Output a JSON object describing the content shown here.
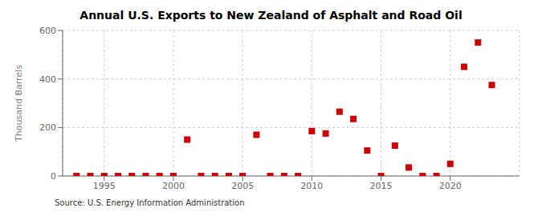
{
  "chart_data": {
    "type": "scatter",
    "title": "Annual U.S. Exports to New Zealand of Asphalt and Road Oil",
    "ylabel": "Thousand Barrels",
    "source": "Source: U.S. Energy Information Administration",
    "x": [
      1993,
      1994,
      1995,
      1996,
      1997,
      1998,
      1999,
      2000,
      2001,
      2002,
      2003,
      2004,
      2005,
      2006,
      2007,
      2008,
      2009,
      2010,
      2011,
      2012,
      2013,
      2014,
      2015,
      2016,
      2017,
      2018,
      2019,
      2020,
      2021,
      2022,
      2023
    ],
    "values": [
      0,
      0,
      0,
      0,
      0,
      0,
      0,
      0,
      150,
      0,
      0,
      0,
      0,
      170,
      0,
      0,
      0,
      185,
      175,
      265,
      235,
      105,
      0,
      125,
      35,
      0,
      0,
      50,
      450,
      550,
      375
    ],
    "color": "#cc0000",
    "marker": "square",
    "xlim": [
      1992,
      2025
    ],
    "ylim": [
      0,
      600
    ],
    "xticks": [
      1995,
      2000,
      2005,
      2010,
      2015,
      2020
    ],
    "yticks": [
      0,
      200,
      400,
      600
    ],
    "grid": true
  }
}
